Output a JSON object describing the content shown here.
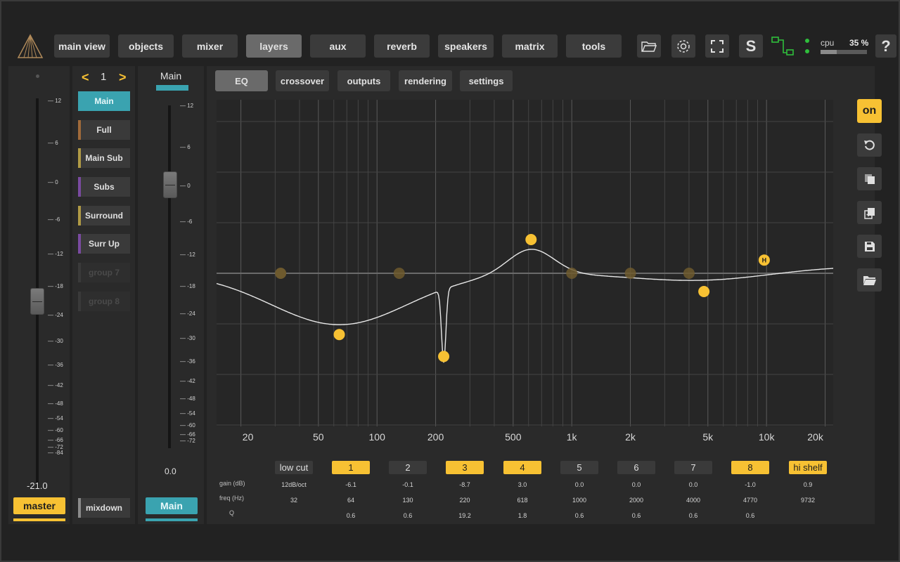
{
  "nav": {
    "tabs": [
      {
        "label": "main view"
      },
      {
        "label": "objects"
      },
      {
        "label": "mixer"
      },
      {
        "label": "layers",
        "active": true
      },
      {
        "label": "aux"
      },
      {
        "label": "reverb"
      },
      {
        "label": "speakers"
      },
      {
        "label": "matrix"
      },
      {
        "label": "tools"
      }
    ],
    "solo_label": "S",
    "help_label": "?",
    "cpu_label": "cpu",
    "cpu_value": "35 %",
    "cpu_fraction": 0.35
  },
  "master_fader": {
    "value": "-21.0",
    "button_label": "master",
    "scale": [
      "12",
      "6",
      "0",
      "-6",
      "-12",
      "-18",
      "-24",
      "-30",
      "-36",
      "-42",
      "-48",
      "-54",
      "-60",
      "-66",
      "-72",
      "-84"
    ]
  },
  "layers": {
    "prev": "<",
    "next": ">",
    "page": "1",
    "items": [
      {
        "label": "Main",
        "color": "#3aa3b0",
        "selected": true
      },
      {
        "label": "Full",
        "color": "#a06a3a"
      },
      {
        "label": "Main Sub",
        "color": "#b09a45"
      },
      {
        "label": "Subs",
        "color": "#7a4aa0"
      },
      {
        "label": "Surround",
        "color": "#b09a45"
      },
      {
        "label": "Surr Up",
        "color": "#7a4aa0"
      },
      {
        "label": "group 7",
        "dim": true
      },
      {
        "label": "group 8",
        "dim": true
      }
    ],
    "mixdown_label": "mixdown"
  },
  "layer_fader": {
    "title": "Main",
    "value": "0.0",
    "button_label": "Main",
    "accent": "#3aa3b0",
    "scale": [
      "12",
      "6",
      "0",
      "-6",
      "-12",
      "-18",
      "-24",
      "-30",
      "-36",
      "-42",
      "-48",
      "-54",
      "-60",
      "-66",
      "-72"
    ]
  },
  "subtabs": [
    {
      "label": "EQ",
      "active": true
    },
    {
      "label": "crossover"
    },
    {
      "label": "outputs"
    },
    {
      "label": "rendering"
    },
    {
      "label": "settings"
    }
  ],
  "eq": {
    "on_label": "on",
    "freq_axis": [
      "20",
      "50",
      "100",
      "200",
      "500",
      "1k",
      "2k",
      "5k",
      "10k",
      "20k"
    ],
    "row_labels": {
      "gain": "gain (dB)",
      "freq": "freq (Hz)",
      "q": "Q"
    },
    "lowcut": {
      "label": "low cut",
      "slope": "12dB/oct",
      "freq": "32"
    },
    "bands": [
      {
        "label": "1",
        "on": true,
        "gain": "-6.1",
        "freq": "64",
        "q": "0.6"
      },
      {
        "label": "2",
        "on": false,
        "gain": "-0.1",
        "freq": "130",
        "q": "0.6"
      },
      {
        "label": "3",
        "on": true,
        "gain": "-8.7",
        "freq": "220",
        "q": "19.2"
      },
      {
        "label": "4",
        "on": true,
        "gain": "3.0",
        "freq": "618",
        "q": "1.8"
      },
      {
        "label": "5",
        "on": false,
        "gain": "0.0",
        "freq": "1000",
        "q": "0.6"
      },
      {
        "label": "6",
        "on": false,
        "gain": "0.0",
        "freq": "2000",
        "q": "0.6"
      },
      {
        "label": "7",
        "on": false,
        "gain": "0.0",
        "freq": "4000",
        "q": "0.6"
      },
      {
        "label": "8",
        "on": true,
        "gain": "-1.0",
        "freq": "4770",
        "q": "0.6"
      }
    ],
    "hishelf": {
      "label": "hi shelf",
      "gain": "0.9",
      "freq": "9732",
      "marker": "H"
    },
    "accent": "#f7c133"
  }
}
